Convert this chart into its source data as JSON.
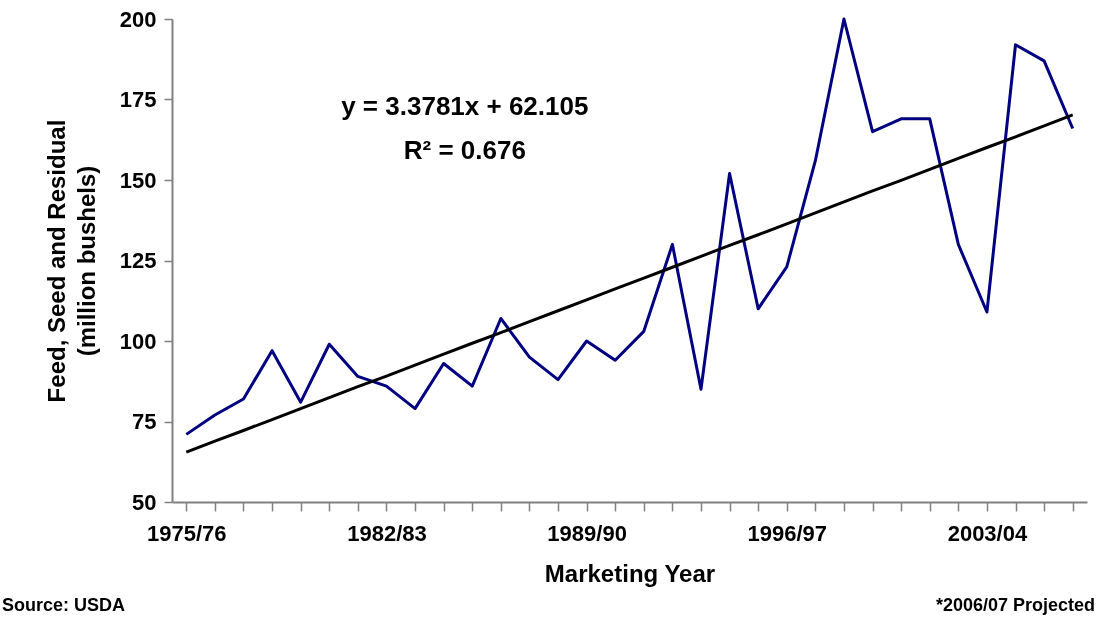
{
  "chart_data": {
    "type": "line",
    "xlabel": "Marketing Year",
    "ylabel": "Feed, Seed and Residual\n(million bushels)",
    "categories": [
      "1975/76",
      null,
      null,
      null,
      null,
      null,
      null,
      "1982/83",
      null,
      null,
      null,
      null,
      null,
      null,
      "1989/90",
      null,
      null,
      null,
      null,
      null,
      null,
      "1996/97",
      null,
      null,
      null,
      null,
      null,
      null,
      "2003/04",
      null,
      null,
      null
    ],
    "series": [
      {
        "color": "#000080",
        "values": [
          71,
          77,
          82,
          97,
          81,
          99,
          89,
          86,
          79,
          93,
          86,
          107,
          95,
          88,
          100,
          94,
          103,
          130,
          85,
          152,
          110,
          123,
          156,
          200,
          165,
          169,
          169,
          130,
          109,
          192,
          187,
          166
        ]
      },
      {
        "type": "line",
        "color": "#000000",
        "values": [
          65.5,
          68.9,
          72.2,
          75.6,
          79.0,
          82.4,
          85.8,
          89.1,
          92.5,
          95.9,
          99.3,
          102.6,
          106.0,
          109.4,
          112.8,
          116.2,
          119.5,
          122.9,
          126.3,
          129.7,
          133.0,
          136.4,
          139.8,
          143.2,
          146.6,
          149.9,
          153.3,
          156.7,
          160.1,
          163.4,
          166.8,
          170.2
        ]
      }
    ],
    "ylim": [
      50,
      200
    ],
    "yticks": [
      50,
      75,
      100,
      125,
      150,
      175,
      200
    ],
    "grid": false,
    "marker": "none",
    "line_style": "solid",
    "annotations": [
      "y = 3.3781x + 62.105",
      "R² = 0.676",
      "Source: USDA",
      "*2006/07 Projected"
    ]
  }
}
